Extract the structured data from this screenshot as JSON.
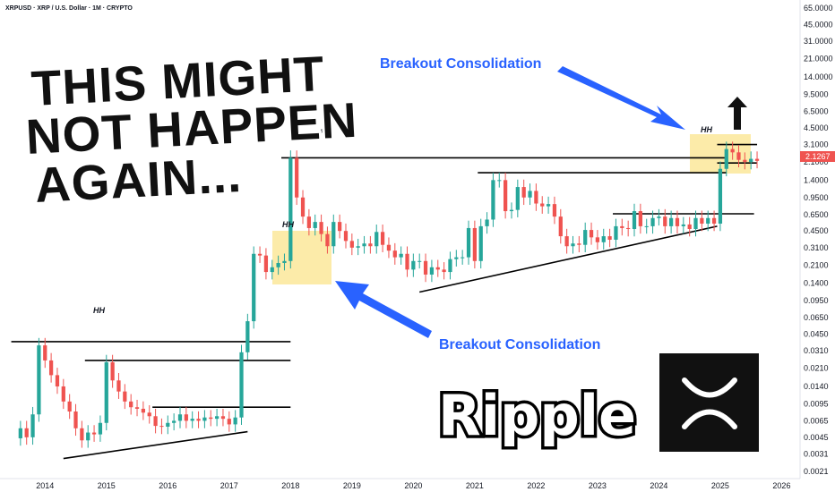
{
  "header": {
    "title": "XRPUSD · XRP / U.S. Dollar · 1M · CRYPTO"
  },
  "headline": [
    "THIS MIGHT",
    "NOT HAPPEN",
    "AGAIN..."
  ],
  "annotations": {
    "breakout_top": "Breakout Consolidation",
    "breakout_bottom": "Breakout Consolidation",
    "hh": "HH"
  },
  "brand": {
    "name": "Ripple"
  },
  "price_tag": "2.1267",
  "colors": {
    "up": "#26a69a",
    "down": "#ef5350",
    "blue": "#2962ff",
    "highlight": "#fbe79a"
  },
  "chart_data": {
    "type": "line",
    "scale": "log",
    "title": "XRPUSD · XRP / U.S. Dollar · 1M · CRYPTO",
    "xlabel": "",
    "ylabel": "",
    "x_ticks": [
      "2014",
      "2015",
      "2016",
      "2017",
      "2018",
      "2019",
      "2020",
      "2021",
      "2022",
      "2023",
      "2024",
      "2025",
      "2026"
    ],
    "y_ticks": [
      "65.0000",
      "45.0000",
      "31.0000",
      "21.0000",
      "14.0000",
      "9.5000",
      "6.5000",
      "4.5000",
      "3.1000",
      "2.1000",
      "1.4000",
      "0.9500",
      "0.6500",
      "0.4500",
      "0.3100",
      "0.2100",
      "0.1400",
      "0.0950",
      "0.0650",
      "0.0450",
      "0.0310",
      "0.0210",
      "0.0140",
      "0.0095",
      "0.0065",
      "0.0045",
      "0.0031",
      "0.0021"
    ],
    "ylim": [
      0.0019,
      72
    ],
    "xlim": [
      2013.5,
      2026.3
    ],
    "series": [
      {
        "values": [
          [
            2013.6,
            0.0055
          ],
          [
            2013.7,
            0.0045
          ],
          [
            2013.8,
            0.0075
          ],
          [
            2013.9,
            0.035
          ],
          [
            2014.0,
            0.025
          ],
          [
            2014.1,
            0.018
          ],
          [
            2014.2,
            0.014
          ],
          [
            2014.3,
            0.01
          ],
          [
            2014.4,
            0.008
          ],
          [
            2014.5,
            0.0055
          ],
          [
            2014.6,
            0.0042
          ],
          [
            2014.7,
            0.005
          ],
          [
            2014.8,
            0.0048
          ],
          [
            2014.9,
            0.0062
          ],
          [
            2015.0,
            0.024
          ],
          [
            2015.1,
            0.016
          ],
          [
            2015.2,
            0.0125
          ],
          [
            2015.3,
            0.01
          ],
          [
            2015.4,
            0.0088
          ],
          [
            2015.5,
            0.0085
          ],
          [
            2015.6,
            0.0078
          ],
          [
            2015.7,
            0.0072
          ],
          [
            2015.8,
            0.0058
          ],
          [
            2015.9,
            0.0057
          ],
          [
            2016.0,
            0.0062
          ],
          [
            2016.1,
            0.0065
          ],
          [
            2016.2,
            0.0075
          ],
          [
            2016.3,
            0.0065
          ],
          [
            2016.4,
            0.0068
          ],
          [
            2016.5,
            0.0065
          ],
          [
            2016.6,
            0.007
          ],
          [
            2016.7,
            0.0068
          ],
          [
            2016.8,
            0.0072
          ],
          [
            2016.9,
            0.0068
          ],
          [
            2017.0,
            0.006
          ],
          [
            2017.1,
            0.007
          ],
          [
            2017.2,
            0.03
          ],
          [
            2017.3,
            0.06
          ],
          [
            2017.4,
            0.27
          ],
          [
            2017.5,
            0.26
          ],
          [
            2017.6,
            0.18
          ],
          [
            2017.7,
            0.2
          ],
          [
            2017.8,
            0.22
          ],
          [
            2017.9,
            0.23
          ],
          [
            2018.0,
            2.3
          ],
          [
            2018.1,
            0.95
          ],
          [
            2018.2,
            0.62
          ],
          [
            2018.3,
            0.48
          ],
          [
            2018.4,
            0.55
          ],
          [
            2018.5,
            0.42
          ],
          [
            2018.6,
            0.32
          ],
          [
            2018.7,
            0.55
          ],
          [
            2018.8,
            0.45
          ],
          [
            2018.9,
            0.36
          ],
          [
            2019.0,
            0.31
          ],
          [
            2019.1,
            0.32
          ],
          [
            2019.2,
            0.34
          ],
          [
            2019.3,
            0.32
          ],
          [
            2019.4,
            0.44
          ],
          [
            2019.5,
            0.33
          ],
          [
            2019.6,
            0.29
          ],
          [
            2019.7,
            0.25
          ],
          [
            2019.8,
            0.27
          ],
          [
            2019.9,
            0.19
          ],
          [
            2020.0,
            0.23
          ],
          [
            2020.1,
            0.23
          ],
          [
            2020.2,
            0.17
          ],
          [
            2020.3,
            0.2
          ],
          [
            2020.4,
            0.19
          ],
          [
            2020.5,
            0.18
          ],
          [
            2020.6,
            0.24
          ],
          [
            2020.7,
            0.25
          ],
          [
            2020.8,
            0.25
          ],
          [
            2020.9,
            0.48
          ],
          [
            2021.0,
            0.23
          ],
          [
            2021.1,
            0.5
          ],
          [
            2021.2,
            0.58
          ],
          [
            2021.3,
            1.4
          ],
          [
            2021.4,
            1.4
          ],
          [
            2021.5,
            0.7
          ],
          [
            2021.6,
            0.72
          ],
          [
            2021.7,
            1.2
          ],
          [
            2021.8,
            0.95
          ],
          [
            2021.9,
            1.1
          ],
          [
            2022.0,
            0.83
          ],
          [
            2022.1,
            0.78
          ],
          [
            2022.2,
            0.82
          ],
          [
            2022.3,
            0.62
          ],
          [
            2022.4,
            0.4
          ],
          [
            2022.5,
            0.32
          ],
          [
            2022.6,
            0.34
          ],
          [
            2022.7,
            0.33
          ],
          [
            2022.8,
            0.46
          ],
          [
            2022.9,
            0.39
          ],
          [
            2023.0,
            0.35
          ],
          [
            2023.1,
            0.4
          ],
          [
            2023.2,
            0.37
          ],
          [
            2023.3,
            0.5
          ],
          [
            2023.4,
            0.48
          ],
          [
            2023.5,
            0.47
          ],
          [
            2023.6,
            0.7
          ],
          [
            2023.7,
            0.5
          ],
          [
            2023.8,
            0.5
          ],
          [
            2023.9,
            0.6
          ],
          [
            2024.0,
            0.62
          ],
          [
            2024.1,
            0.5
          ],
          [
            2024.2,
            0.6
          ],
          [
            2024.3,
            0.5
          ],
          [
            2024.4,
            0.52
          ],
          [
            2024.5,
            0.47
          ],
          [
            2024.6,
            0.6
          ],
          [
            2024.7,
            0.53
          ],
          [
            2024.8,
            0.6
          ],
          [
            2024.9,
            0.53
          ],
          [
            2025.0,
            1.8
          ],
          [
            2025.1,
            2.8
          ],
          [
            2025.2,
            2.6
          ],
          [
            2025.3,
            2.2
          ],
          [
            2025.4,
            2.1
          ],
          [
            2025.5,
            2.25
          ],
          [
            2025.6,
            2.15
          ]
        ]
      }
    ],
    "levels": [
      {
        "label": "resistance 2014",
        "value": 0.038,
        "x": [
          2013.45,
          2018.0
        ]
      },
      {
        "label": "resistance 2015",
        "value": 0.025,
        "x": [
          2014.65,
          2018.0
        ]
      },
      {
        "label": "resistance 2016",
        "value": 0.0088,
        "x": [
          2015.75,
          2018.0
        ]
      },
      {
        "label": "support 2014-2017",
        "value": [
          0.0028,
          0.0051
        ],
        "x": [
          2014.3,
          2017.3
        ]
      },
      {
        "label": "resistance 2018 high",
        "value": 2.3,
        "x": [
          2017.85,
          2025.1
        ]
      },
      {
        "label": "resistance 2021",
        "value": 1.65,
        "x": [
          2021.05,
          2025.1
        ]
      },
      {
        "label": "resistance 2023",
        "value": 0.66,
        "x": [
          2023.25,
          2025.55
        ]
      },
      {
        "label": "support 2020-2024",
        "value": [
          0.115,
          0.5
        ],
        "x": [
          2020.1,
          2024.95
        ]
      },
      {
        "label": "consolidation top 2025",
        "value": 3.1,
        "x": [
          2024.95,
          2025.6
        ]
      },
      {
        "label": "consolidation mid 2025",
        "value": 2.05,
        "x": [
          2024.95,
          2025.6
        ]
      }
    ],
    "current_price": 2.1267
  }
}
